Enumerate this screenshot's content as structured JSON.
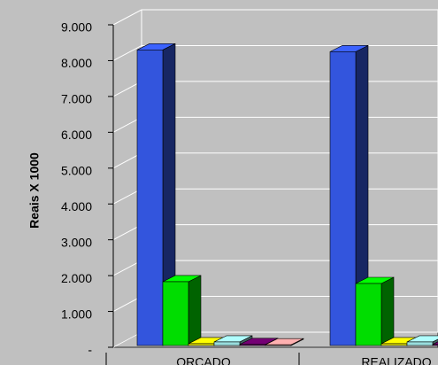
{
  "chart_data": {
    "type": "bar3d",
    "y_label": "Reais X 1000",
    "categories": [
      "ORÇADO",
      "REALIZADO"
    ],
    "series": [
      {
        "color": "#3355dd",
        "values": [
          8300,
          8250
        ]
      },
      {
        "color": "#00dd00",
        "values": [
          1830,
          1780
        ]
      },
      {
        "color": "#eeee00",
        "values": [
          100,
          100
        ]
      },
      {
        "color": "#99dddd",
        "values": [
          150,
          150
        ]
      },
      {
        "color": "#660066",
        "values": [
          80,
          80
        ]
      },
      {
        "color": "#ff9999",
        "values": [
          70,
          70
        ]
      }
    ],
    "ylim": [
      0,
      9000
    ],
    "yticks": [
      {
        "value": 0,
        "label": "-"
      },
      {
        "value": 1000,
        "label": "1.000"
      },
      {
        "value": 2000,
        "label": "2.000"
      },
      {
        "value": 3000,
        "label": "3.000"
      },
      {
        "value": 4000,
        "label": "4.000"
      },
      {
        "value": 5000,
        "label": "5.000"
      },
      {
        "value": 6000,
        "label": "6.000"
      },
      {
        "value": 7000,
        "label": "7.000"
      },
      {
        "value": 8000,
        "label": "8.000"
      },
      {
        "value": 9000,
        "label": "9.000"
      }
    ],
    "grid": true
  }
}
